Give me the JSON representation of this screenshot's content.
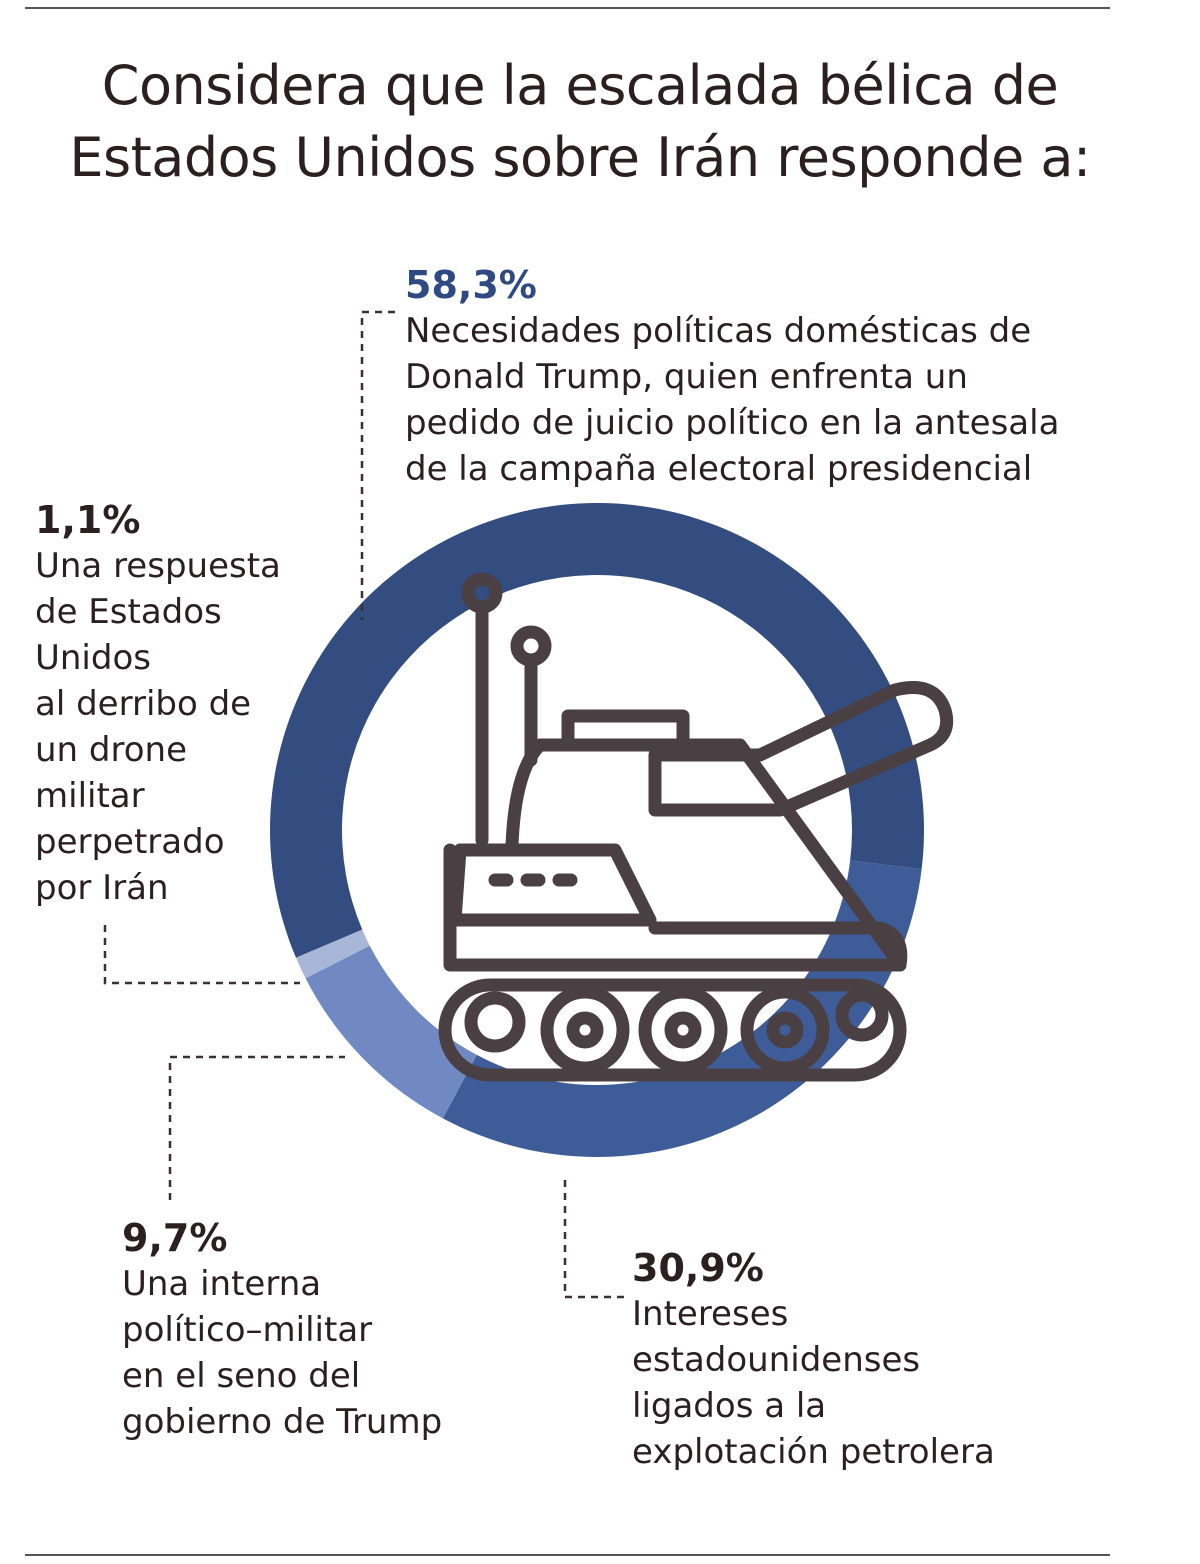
{
  "chart_data": {
    "type": "donut",
    "title": "Considera que la escalada bélica de Estados Unidos sobre Irán responde a:",
    "categories": [
      "Necesidades políticas domésticas de\nDonald Trump, quien enfrenta un\npedido de juicio político en la antesala\nde la campaña electoral presidencial",
      "Intereses\nestadounidenses\nligados a la\nexplotación petrolera",
      "Una interna\npolítico–militar\nen el seno del\ngobierno de Trump",
      "Una respuesta\nde Estados\nUnidos\nal derribo de\nun drone\nmilitar\nperpetrado\npor Irán"
    ],
    "values": [
      58.3,
      30.9,
      9.7,
      1.1
    ],
    "value_labels": [
      "58,3%",
      "30,9%",
      "9,7%",
      "1,1%"
    ],
    "colors": [
      "#344d80",
      "#3e5d98",
      "#7189c2",
      "#a8b7d8"
    ]
  }
}
